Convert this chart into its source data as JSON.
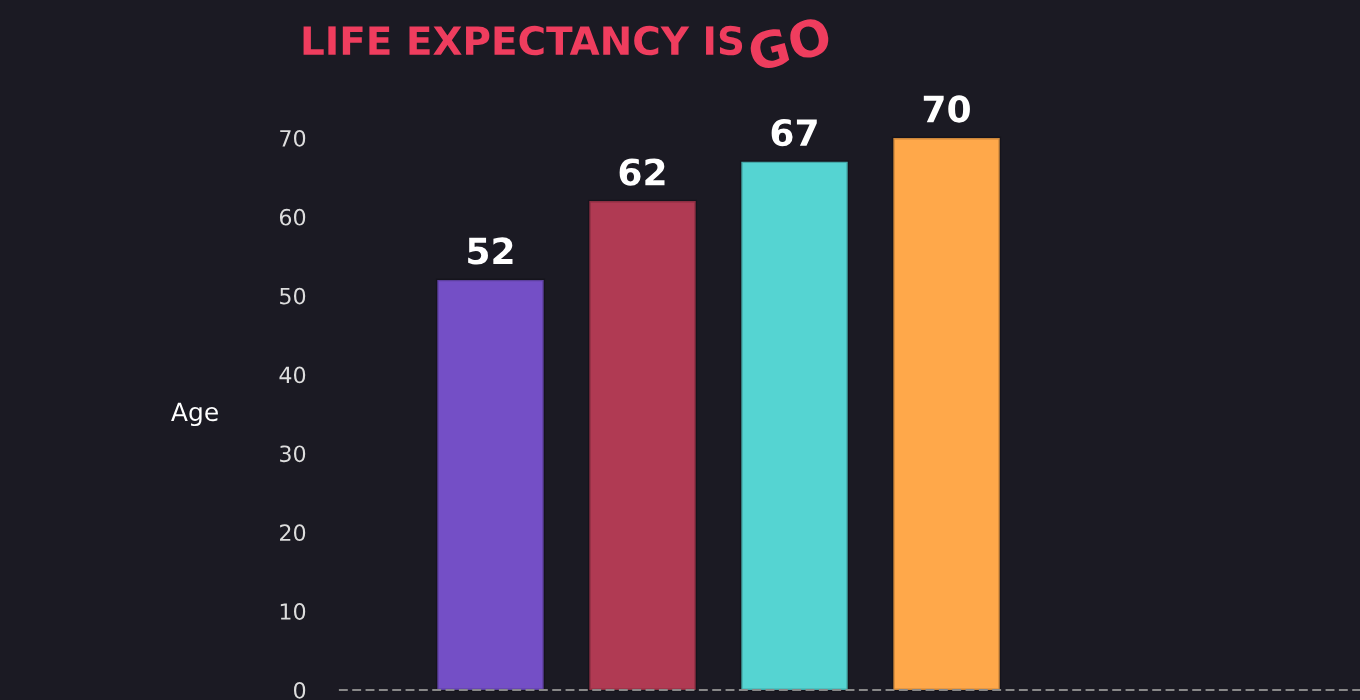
{
  "chart_data": {
    "type": "bar",
    "title": "LIFE EXPECTANCY IS",
    "annotations": [
      "GO"
    ],
    "ylabel": "Age",
    "categories": [
      null,
      null,
      null,
      null
    ],
    "values": [
      52,
      62,
      67,
      70
    ],
    "colors": [
      "#744fc6",
      "#b03a53",
      "#55d4d2",
      "#ffa84a"
    ],
    "data_labels": true,
    "ylim": [
      0,
      70
    ],
    "yticks": [
      0,
      10,
      20,
      30,
      40,
      50,
      60,
      70
    ],
    "grid": false,
    "tick_labels": "y"
  }
}
